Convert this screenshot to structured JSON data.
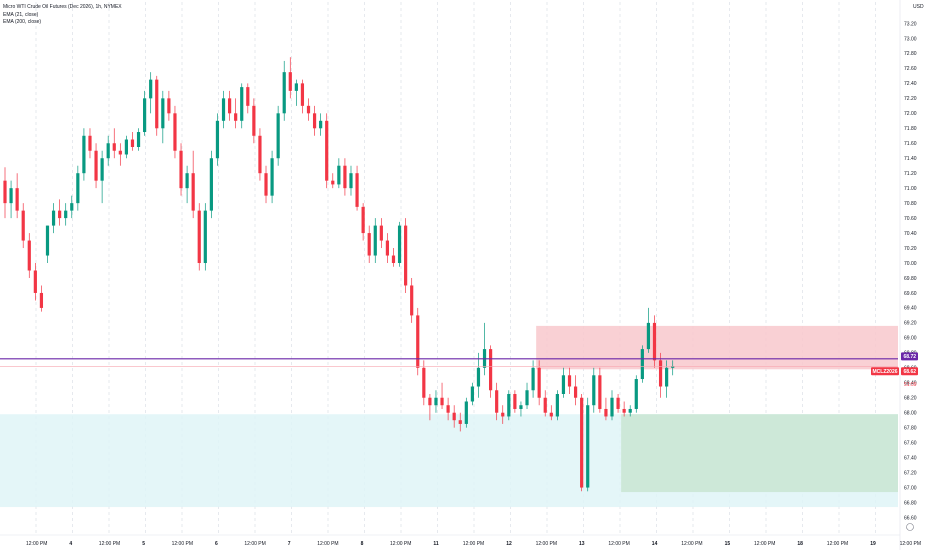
{
  "legend": {
    "title": "Micro WTI Crude Oil Futures (Dec 2026), 1h, NYMEX",
    "ema1": "EMA (21, close)",
    "ema2": "EMA (200, close)"
  },
  "currency": "USD",
  "colors": {
    "up": "#089981",
    "down": "#f23645",
    "grid": "#d5dbe3",
    "supply_zone": "#f8c8cd",
    "demand_zone": "#dff4f7",
    "green_box": "#cbe7d6",
    "ema_line": "#6a27a8",
    "pink_line": "#f7a6b0"
  },
  "chart_data": {
    "type": "candlestick",
    "timeframe": "1h",
    "symbol": "MCLZ2026",
    "y_axis": {
      "min": 66.6,
      "max": 73.4,
      "ticks": [
        "73.20",
        "73.00",
        "72.80",
        "72.60",
        "72.40",
        "72.20",
        "72.00",
        "71.80",
        "71.60",
        "71.40",
        "71.20",
        "71.00",
        "70.80",
        "70.60",
        "70.40",
        "70.20",
        "70.00",
        "69.80",
        "69.60",
        "69.40",
        "69.20",
        "69.00",
        "68.80",
        "68.60",
        "68.40",
        "68.20",
        "68.00",
        "67.80",
        "67.60",
        "67.40",
        "67.20",
        "67.00",
        "66.80",
        "66.60"
      ],
      "tick_values": [
        73.2,
        73.0,
        72.8,
        72.6,
        72.4,
        72.2,
        72.0,
        71.8,
        71.6,
        71.4,
        71.2,
        71.0,
        70.8,
        70.6,
        70.4,
        70.2,
        70.0,
        69.8,
        69.6,
        69.4,
        69.2,
        69.0,
        68.8,
        68.6,
        68.4,
        68.2,
        68.0,
        67.8,
        67.6,
        67.4,
        67.2,
        67.0,
        66.8,
        66.6
      ]
    },
    "x_axis": {
      "labels": [
        "12:00 PM",
        "4",
        "12:00 PM",
        "5",
        "12:00 PM",
        "6",
        "12:00 PM",
        "7",
        "12:00 PM",
        "8",
        "12:00 PM",
        "11",
        "12:00 PM",
        "12",
        "12:00 PM",
        "13",
        "12:00 PM",
        "14",
        "12:00 PM",
        "15",
        "12:00 PM",
        "18",
        "12:00 PM",
        "19",
        "12:00 PM"
      ],
      "day_label_flags": [
        false,
        true,
        false,
        true,
        false,
        true,
        false,
        true,
        false,
        true,
        false,
        true,
        false,
        true,
        false,
        true,
        false,
        true,
        false,
        true,
        false,
        true,
        false,
        true,
        false
      ]
    },
    "price_tags": [
      {
        "label": "68.72",
        "value": 68.72,
        "color": "#6a27a8"
      },
      {
        "label": "68.62",
        "value": 68.62,
        "color": "#f23645"
      },
      {
        "label": "MCLZ2026",
        "value": 68.62,
        "color": "#f23645"
      },
      {
        "label": "51:09",
        "value": 68.5,
        "color": "#f23645"
      }
    ],
    "levels": [
      {
        "name": "ema",
        "value": 68.72
      },
      {
        "name": "pink",
        "value": 68.62
      }
    ],
    "zones": [
      {
        "name": "supply",
        "from_bar": 88,
        "to_bar": 999,
        "top": 69.16,
        "bottom": 68.58
      },
      {
        "name": "demand",
        "from_bar": -999,
        "to_bar": 999,
        "top": 67.98,
        "bottom": 66.74
      },
      {
        "name": "target",
        "from_bar": 102,
        "to_bar": 999,
        "top": 67.98,
        "bottom": 66.94
      }
    ],
    "series": [
      {
        "o": 71.1,
        "h": 71.28,
        "l": 70.6,
        "c": 70.8
      },
      {
        "o": 70.8,
        "h": 71.1,
        "l": 70.6,
        "c": 71.0
      },
      {
        "o": 71.0,
        "h": 71.2,
        "l": 70.6,
        "c": 70.7
      },
      {
        "o": 70.7,
        "h": 70.8,
        "l": 70.2,
        "c": 70.3
      },
      {
        "o": 70.3,
        "h": 70.4,
        "l": 69.8,
        "c": 69.9
      },
      {
        "o": 69.9,
        "h": 70.0,
        "l": 69.5,
        "c": 69.6
      },
      {
        "o": 69.6,
        "h": 69.7,
        "l": 69.35,
        "c": 69.4
      },
      {
        "o": 70.1,
        "h": 70.5,
        "l": 70.0,
        "c": 70.5
      },
      {
        "o": 70.5,
        "h": 70.8,
        "l": 70.4,
        "c": 70.7
      },
      {
        "o": 70.7,
        "h": 70.85,
        "l": 70.5,
        "c": 70.6
      },
      {
        "o": 70.6,
        "h": 70.8,
        "l": 70.5,
        "c": 70.7
      },
      {
        "o": 70.7,
        "h": 70.9,
        "l": 70.6,
        "c": 70.8
      },
      {
        "o": 70.8,
        "h": 71.3,
        "l": 70.7,
        "c": 71.2
      },
      {
        "o": 71.2,
        "h": 71.8,
        "l": 71.1,
        "c": 71.7
      },
      {
        "o": 71.7,
        "h": 71.8,
        "l": 71.4,
        "c": 71.5
      },
      {
        "o": 71.5,
        "h": 71.6,
        "l": 71.0,
        "c": 71.1
      },
      {
        "o": 71.1,
        "h": 71.5,
        "l": 70.8,
        "c": 71.4
      },
      {
        "o": 71.4,
        "h": 71.7,
        "l": 71.3,
        "c": 71.6
      },
      {
        "o": 71.6,
        "h": 71.8,
        "l": 71.4,
        "c": 71.5
      },
      {
        "o": 71.5,
        "h": 71.6,
        "l": 71.3,
        "c": 71.45
      },
      {
        "o": 71.45,
        "h": 71.7,
        "l": 71.4,
        "c": 71.65
      },
      {
        "o": 71.65,
        "h": 71.75,
        "l": 71.5,
        "c": 71.55
      },
      {
        "o": 71.55,
        "h": 71.8,
        "l": 71.5,
        "c": 71.75
      },
      {
        "o": 71.75,
        "h": 72.3,
        "l": 71.7,
        "c": 72.2
      },
      {
        "o": 72.2,
        "h": 72.55,
        "l": 72.0,
        "c": 72.45
      },
      {
        "o": 72.45,
        "h": 72.5,
        "l": 71.7,
        "c": 71.8
      },
      {
        "o": 71.8,
        "h": 72.3,
        "l": 71.6,
        "c": 72.2
      },
      {
        "o": 72.2,
        "h": 72.3,
        "l": 71.9,
        "c": 72.0
      },
      {
        "o": 72.0,
        "h": 72.1,
        "l": 71.4,
        "c": 71.5
      },
      {
        "o": 71.5,
        "h": 71.6,
        "l": 70.9,
        "c": 71.0
      },
      {
        "o": 71.0,
        "h": 71.3,
        "l": 70.8,
        "c": 71.2
      },
      {
        "o": 71.2,
        "h": 71.5,
        "l": 70.6,
        "c": 70.7
      },
      {
        "o": 70.7,
        "h": 70.8,
        "l": 69.9,
        "c": 70.0
      },
      {
        "o": 70.0,
        "h": 70.8,
        "l": 69.9,
        "c": 70.7
      },
      {
        "o": 70.7,
        "h": 71.5,
        "l": 70.6,
        "c": 71.4
      },
      {
        "o": 71.4,
        "h": 72.0,
        "l": 71.3,
        "c": 71.9
      },
      {
        "o": 71.9,
        "h": 72.3,
        "l": 71.8,
        "c": 72.2
      },
      {
        "o": 72.2,
        "h": 72.3,
        "l": 71.9,
        "c": 72.0
      },
      {
        "o": 72.0,
        "h": 72.2,
        "l": 71.8,
        "c": 71.9
      },
      {
        "o": 71.9,
        "h": 72.4,
        "l": 71.8,
        "c": 72.35
      },
      {
        "o": 72.35,
        "h": 72.4,
        "l": 72.0,
        "c": 72.1
      },
      {
        "o": 72.1,
        "h": 72.2,
        "l": 71.6,
        "c": 71.7
      },
      {
        "o": 71.7,
        "h": 71.8,
        "l": 71.1,
        "c": 71.2
      },
      {
        "o": 71.2,
        "h": 71.3,
        "l": 70.8,
        "c": 70.9
      },
      {
        "o": 70.9,
        "h": 71.5,
        "l": 70.8,
        "c": 71.4
      },
      {
        "o": 71.4,
        "h": 72.1,
        "l": 71.3,
        "c": 72.0
      },
      {
        "o": 72.0,
        "h": 72.7,
        "l": 71.9,
        "c": 72.55
      },
      {
        "o": 72.55,
        "h": 72.75,
        "l": 72.2,
        "c": 72.3
      },
      {
        "o": 72.3,
        "h": 72.45,
        "l": 72.1,
        "c": 72.4
      },
      {
        "o": 72.4,
        "h": 72.45,
        "l": 72.0,
        "c": 72.1
      },
      {
        "o": 72.1,
        "h": 72.2,
        "l": 71.9,
        "c": 72.0
      },
      {
        "o": 72.0,
        "h": 72.1,
        "l": 71.7,
        "c": 71.8
      },
      {
        "o": 71.8,
        "h": 72.0,
        "l": 71.7,
        "c": 71.9
      },
      {
        "o": 71.9,
        "h": 72.0,
        "l": 71.0,
        "c": 71.1
      },
      {
        "o": 71.1,
        "h": 71.2,
        "l": 71.0,
        "c": 71.05
      },
      {
        "o": 71.05,
        "h": 71.4,
        "l": 71.0,
        "c": 71.3
      },
      {
        "o": 71.3,
        "h": 71.4,
        "l": 70.9,
        "c": 71.0
      },
      {
        "o": 71.0,
        "h": 71.3,
        "l": 70.9,
        "c": 71.2
      },
      {
        "o": 71.2,
        "h": 71.3,
        "l": 70.7,
        "c": 70.75
      },
      {
        "o": 70.75,
        "h": 70.8,
        "l": 70.3,
        "c": 70.4
      },
      {
        "o": 70.4,
        "h": 70.5,
        "l": 70.0,
        "c": 70.1
      },
      {
        "o": 70.1,
        "h": 70.6,
        "l": 70.0,
        "c": 70.5
      },
      {
        "o": 70.5,
        "h": 70.6,
        "l": 70.2,
        "c": 70.3
      },
      {
        "o": 70.3,
        "h": 70.4,
        "l": 70.0,
        "c": 70.1
      },
      {
        "o": 70.1,
        "h": 70.2,
        "l": 69.95,
        "c": 70.0
      },
      {
        "o": 70.0,
        "h": 70.55,
        "l": 69.95,
        "c": 70.5
      },
      {
        "o": 70.5,
        "h": 70.6,
        "l": 69.6,
        "c": 69.7
      },
      {
        "o": 69.7,
        "h": 69.8,
        "l": 69.2,
        "c": 69.3
      },
      {
        "o": 69.3,
        "h": 69.4,
        "l": 68.5,
        "c": 68.6
      },
      {
        "o": 68.6,
        "h": 68.7,
        "l": 68.1,
        "c": 68.2
      },
      {
        "o": 68.2,
        "h": 68.25,
        "l": 67.9,
        "c": 68.1
      },
      {
        "o": 68.1,
        "h": 68.3,
        "l": 68.0,
        "c": 68.2
      },
      {
        "o": 68.2,
        "h": 68.4,
        "l": 68.05,
        "c": 68.1
      },
      {
        "o": 68.1,
        "h": 68.2,
        "l": 67.9,
        "c": 68.0
      },
      {
        "o": 68.0,
        "h": 68.1,
        "l": 67.8,
        "c": 67.9
      },
      {
        "o": 67.9,
        "h": 68.0,
        "l": 67.75,
        "c": 67.85
      },
      {
        "o": 67.85,
        "h": 68.2,
        "l": 67.8,
        "c": 68.15
      },
      {
        "o": 68.15,
        "h": 68.4,
        "l": 68.1,
        "c": 68.35
      },
      {
        "o": 68.35,
        "h": 68.8,
        "l": 68.2,
        "c": 68.6
      },
      {
        "o": 68.6,
        "h": 69.2,
        "l": 68.5,
        "c": 68.85
      },
      {
        "o": 68.85,
        "h": 68.9,
        "l": 68.2,
        "c": 68.3
      },
      {
        "o": 68.3,
        "h": 68.4,
        "l": 67.9,
        "c": 68.0
      },
      {
        "o": 68.0,
        "h": 68.1,
        "l": 67.85,
        "c": 67.95
      },
      {
        "o": 67.95,
        "h": 68.3,
        "l": 67.9,
        "c": 68.25
      },
      {
        "o": 68.25,
        "h": 68.3,
        "l": 68.0,
        "c": 68.05
      },
      {
        "o": 68.05,
        "h": 68.15,
        "l": 67.95,
        "c": 68.1
      },
      {
        "o": 68.1,
        "h": 68.4,
        "l": 68.05,
        "c": 68.3
      },
      {
        "o": 68.3,
        "h": 68.7,
        "l": 68.2,
        "c": 68.6
      },
      {
        "o": 68.6,
        "h": 68.7,
        "l": 68.1,
        "c": 68.2
      },
      {
        "o": 68.2,
        "h": 68.3,
        "l": 67.95,
        "c": 68.0
      },
      {
        "o": 68.0,
        "h": 68.1,
        "l": 67.9,
        "c": 67.95
      },
      {
        "o": 67.95,
        "h": 68.3,
        "l": 67.9,
        "c": 68.25
      },
      {
        "o": 68.25,
        "h": 68.6,
        "l": 68.2,
        "c": 68.5
      },
      {
        "o": 68.5,
        "h": 68.6,
        "l": 68.25,
        "c": 68.35
      },
      {
        "o": 68.35,
        "h": 68.5,
        "l": 68.1,
        "c": 68.2
      },
      {
        "o": 68.2,
        "h": 68.25,
        "l": 66.95,
        "c": 67.0
      },
      {
        "o": 67.0,
        "h": 68.2,
        "l": 66.95,
        "c": 68.1
      },
      {
        "o": 68.1,
        "h": 68.6,
        "l": 68.0,
        "c": 68.5
      },
      {
        "o": 68.5,
        "h": 68.6,
        "l": 68.0,
        "c": 68.05
      },
      {
        "o": 68.05,
        "h": 68.2,
        "l": 67.9,
        "c": 67.95
      },
      {
        "o": 67.95,
        "h": 68.3,
        "l": 67.9,
        "c": 68.2
      },
      {
        "o": 68.2,
        "h": 68.25,
        "l": 68.0,
        "c": 68.05
      },
      {
        "o": 68.05,
        "h": 68.15,
        "l": 67.95,
        "c": 68.0
      },
      {
        "o": 68.0,
        "h": 68.1,
        "l": 67.95,
        "c": 68.05
      },
      {
        "o": 68.05,
        "h": 68.5,
        "l": 68.0,
        "c": 68.45
      },
      {
        "o": 68.45,
        "h": 68.9,
        "l": 68.4,
        "c": 68.85
      },
      {
        "o": 68.85,
        "h": 69.4,
        "l": 68.8,
        "c": 69.2
      },
      {
        "o": 69.2,
        "h": 69.3,
        "l": 68.6,
        "c": 68.7
      },
      {
        "o": 68.7,
        "h": 68.8,
        "l": 68.2,
        "c": 68.35
      },
      {
        "o": 68.35,
        "h": 68.7,
        "l": 68.2,
        "c": 68.6
      },
      {
        "o": 68.6,
        "h": 68.7,
        "l": 68.5,
        "c": 68.62
      }
    ]
  }
}
